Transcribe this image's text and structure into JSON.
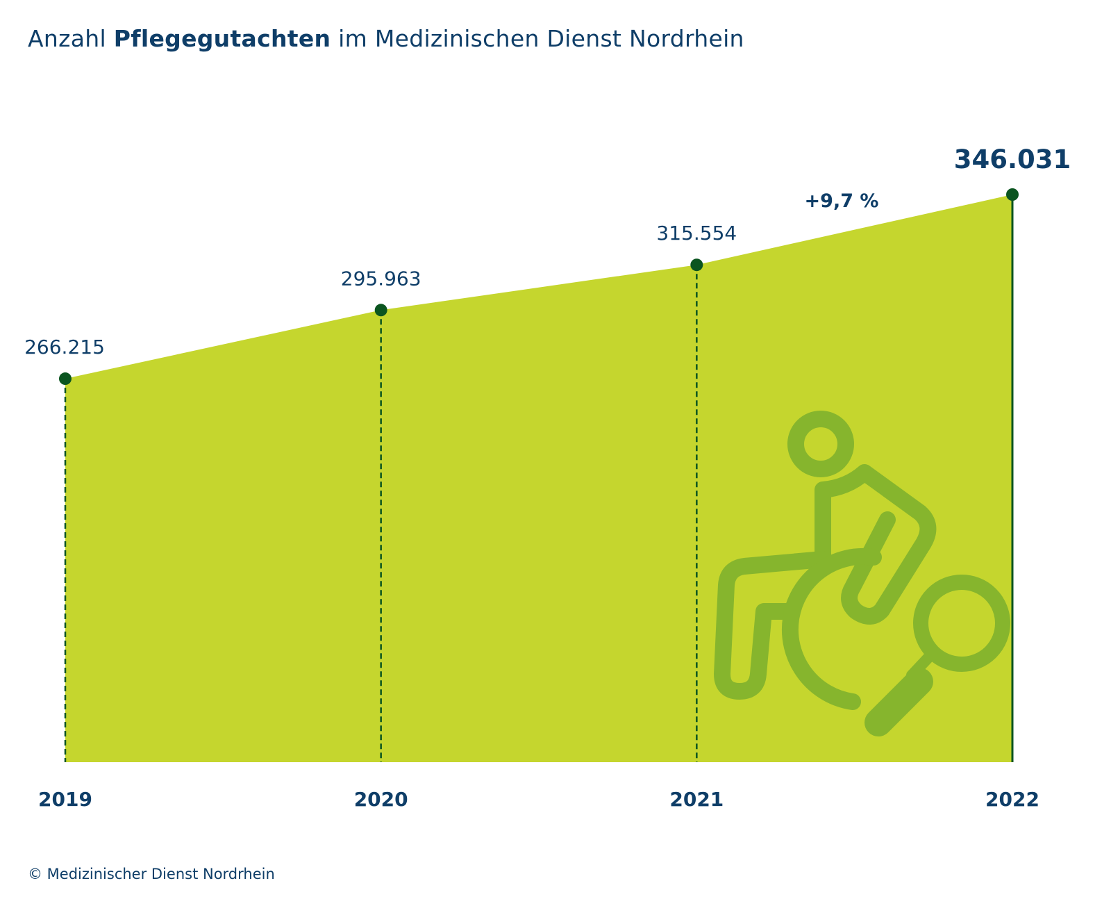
{
  "title": {
    "prefix": "Anzahl ",
    "emphasis": "Pflegegutachten",
    "suffix": " im Medizinischen Dienst Nordrhein"
  },
  "colors": {
    "area": "#c5d62e",
    "marker": "#0b5520",
    "text": "#0f3e68",
    "icon": "#86b52d"
  },
  "icon": "wheelchair-person-magnifier-icon",
  "chart_data": {
    "type": "area",
    "categories": [
      "2019",
      "2020",
      "2021",
      "2022"
    ],
    "values": [
      266215,
      295963,
      315554,
      346031
    ],
    "value_labels": [
      "266.215",
      "295.963",
      "315.554",
      "346.031"
    ],
    "highlight_index": 3,
    "annotation": "+9,7 %",
    "ylim": [
      100000,
      346031
    ]
  },
  "copyright": "© Medizinischer Dienst Nordrhein"
}
